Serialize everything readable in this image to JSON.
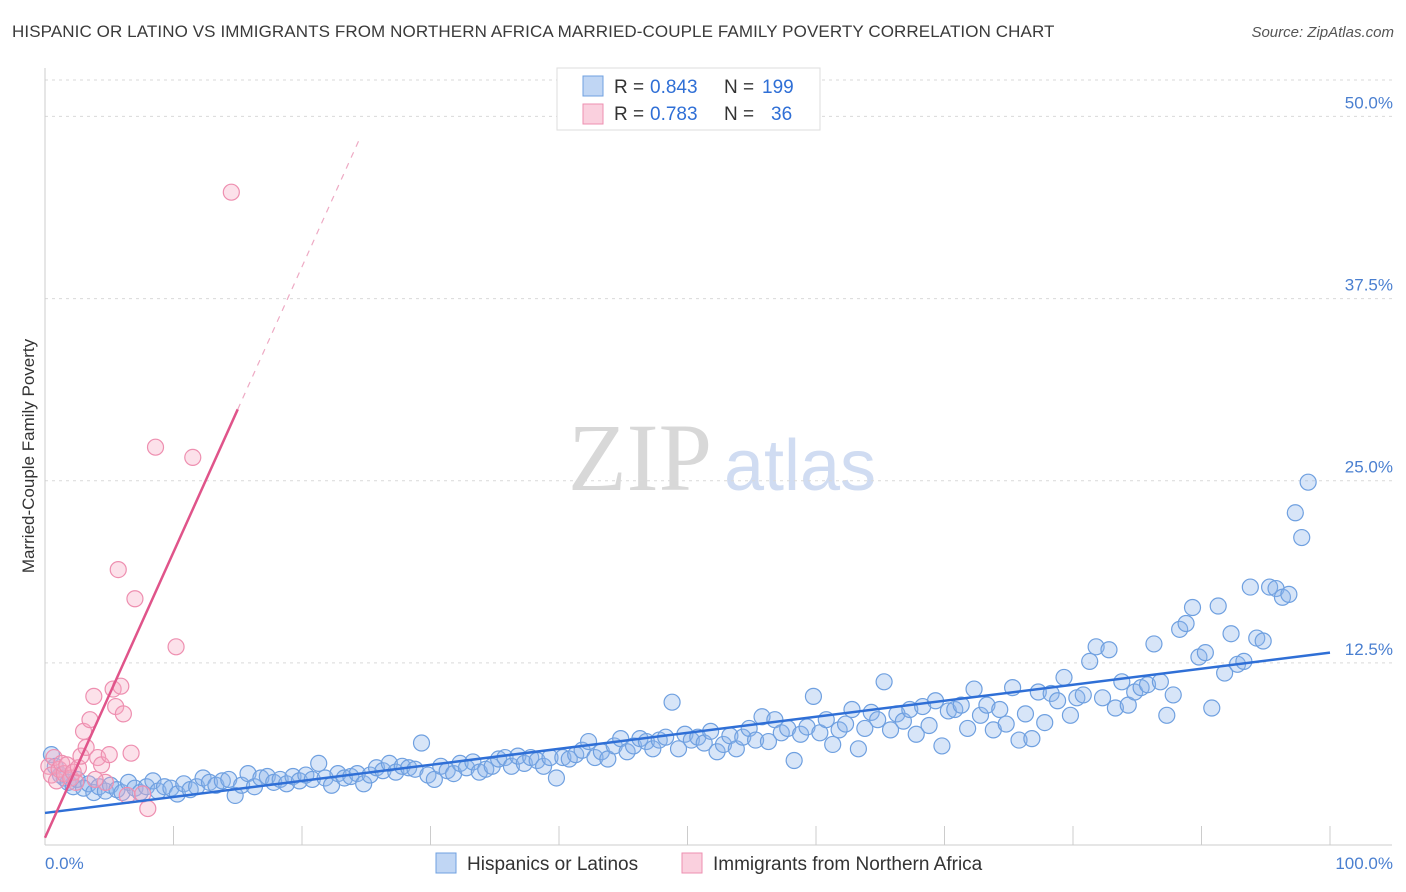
{
  "title": "HISPANIC OR LATINO VS IMMIGRANTS FROM NORTHERN AFRICA MARRIED-COUPLE FAMILY POVERTY CORRELATION CHART",
  "source": "Source: ZipAtlas.com",
  "watermark": {
    "zip": "ZIP",
    "atlas": "atlas"
  },
  "colors": {
    "blue": "#6fa0e0",
    "blue_fill": "rgba(140,180,235,0.35)",
    "blue_line": "#2f6fd6",
    "pink": "#ee8fb0",
    "pink_fill": "rgba(245,170,195,0.35)",
    "pink_line": "#e0548a",
    "grid": "#d9d9d9",
    "axis_text": "#4a7fd0"
  },
  "legend": {
    "rows": [
      {
        "r_label": "R =",
        "r_value": "0.843",
        "n_label": "N =",
        "n_value": "199"
      },
      {
        "r_label": "R =",
        "r_value": "0.783",
        "n_label": "N =",
        "n_value": "36"
      }
    ]
  },
  "chart_data": {
    "type": "scatter",
    "title": "HISPANIC OR LATINO VS IMMIGRANTS FROM NORTHERN AFRICA MARRIED-COUPLE FAMILY POVERTY CORRELATION CHART",
    "xlabel": "",
    "ylabel": "Married-Couple Family Poverty",
    "xlim": [
      0,
      100
    ],
    "ylim": [
      0,
      52.5
    ],
    "x_tick_labels": [
      "0.0%",
      "100.0%"
    ],
    "y_ticks": [
      12.5,
      25.0,
      37.5,
      50.0
    ],
    "y_tick_labels": [
      "12.5%",
      "25.0%",
      "37.5%",
      "50.0%"
    ],
    "legend_position": "top-center",
    "series": [
      {
        "name": "Hispanics or Latinos",
        "R": 0.843,
        "N": 199,
        "trend": {
          "x0": 0,
          "y0": 2.2,
          "x1": 100,
          "y1": 13.2
        },
        "points": [
          [
            0.5,
            6.2
          ],
          [
            0.8,
            5.4
          ],
          [
            1.2,
            4.8
          ],
          [
            1.5,
            4.6
          ],
          [
            1.8,
            4.3
          ],
          [
            2.2,
            4.0
          ],
          [
            2.5,
            4.5
          ],
          [
            3.0,
            3.9
          ],
          [
            3.4,
            4.2
          ],
          [
            3.8,
            3.6
          ],
          [
            4.2,
            4.0
          ],
          [
            4.7,
            3.7
          ],
          [
            5.1,
            4.1
          ],
          [
            5.6,
            3.8
          ],
          [
            6.0,
            3.6
          ],
          [
            6.5,
            4.3
          ],
          [
            7.0,
            3.9
          ],
          [
            7.4,
            3.6
          ],
          [
            7.9,
            4.0
          ],
          [
            8.4,
            4.4
          ],
          [
            8.8,
            3.7
          ],
          [
            9.3,
            4.0
          ],
          [
            9.8,
            3.9
          ],
          [
            10.3,
            3.5
          ],
          [
            10.8,
            4.2
          ],
          [
            11.3,
            3.8
          ],
          [
            11.8,
            4.0
          ],
          [
            12.3,
            4.6
          ],
          [
            12.8,
            4.3
          ],
          [
            13.3,
            4.1
          ],
          [
            13.8,
            4.4
          ],
          [
            14.3,
            4.5
          ],
          [
            14.8,
            3.4
          ],
          [
            15.3,
            4.1
          ],
          [
            15.8,
            4.9
          ],
          [
            16.3,
            4.0
          ],
          [
            16.8,
            4.6
          ],
          [
            17.3,
            4.7
          ],
          [
            17.8,
            4.3
          ],
          [
            18.3,
            4.5
          ],
          [
            18.8,
            4.2
          ],
          [
            19.3,
            4.7
          ],
          [
            19.8,
            4.4
          ],
          [
            20.3,
            4.8
          ],
          [
            20.8,
            4.5
          ],
          [
            21.3,
            5.6
          ],
          [
            21.8,
            4.6
          ],
          [
            22.3,
            4.1
          ],
          [
            22.8,
            4.9
          ],
          [
            23.3,
            4.6
          ],
          [
            23.8,
            4.7
          ],
          [
            24.3,
            4.9
          ],
          [
            24.8,
            4.2
          ],
          [
            25.3,
            4.8
          ],
          [
            25.8,
            5.3
          ],
          [
            26.3,
            5.1
          ],
          [
            26.8,
            5.6
          ],
          [
            27.3,
            5.0
          ],
          [
            27.8,
            5.4
          ],
          [
            28.3,
            5.3
          ],
          [
            28.8,
            5.2
          ],
          [
            29.3,
            7.0
          ],
          [
            29.8,
            4.8
          ],
          [
            30.3,
            4.5
          ],
          [
            30.8,
            5.4
          ],
          [
            31.3,
            5.1
          ],
          [
            31.8,
            4.9
          ],
          [
            32.3,
            5.6
          ],
          [
            32.8,
            5.3
          ],
          [
            33.3,
            5.7
          ],
          [
            33.8,
            5.0
          ],
          [
            34.3,
            5.2
          ],
          [
            34.8,
            5.4
          ],
          [
            35.3,
            5.9
          ],
          [
            35.8,
            6.0
          ],
          [
            36.3,
            5.4
          ],
          [
            36.8,
            6.1
          ],
          [
            37.3,
            5.6
          ],
          [
            37.8,
            6.0
          ],
          [
            38.3,
            5.8
          ],
          [
            38.8,
            5.4
          ],
          [
            39.3,
            6.0
          ],
          [
            39.8,
            4.6
          ],
          [
            40.3,
            6.0
          ],
          [
            40.8,
            5.9
          ],
          [
            41.3,
            6.2
          ],
          [
            41.8,
            6.5
          ],
          [
            42.3,
            7.1
          ],
          [
            42.8,
            6.0
          ],
          [
            43.3,
            6.4
          ],
          [
            43.8,
            5.9
          ],
          [
            44.3,
            6.8
          ],
          [
            44.8,
            7.3
          ],
          [
            45.3,
            6.4
          ],
          [
            45.8,
            6.8
          ],
          [
            46.3,
            7.3
          ],
          [
            46.8,
            7.1
          ],
          [
            47.3,
            6.6
          ],
          [
            47.8,
            7.2
          ],
          [
            48.3,
            7.4
          ],
          [
            48.8,
            9.8
          ],
          [
            49.3,
            6.6
          ],
          [
            49.8,
            7.6
          ],
          [
            50.3,
            7.2
          ],
          [
            50.8,
            7.4
          ],
          [
            51.3,
            7.0
          ],
          [
            51.8,
            7.8
          ],
          [
            52.3,
            6.4
          ],
          [
            52.8,
            6.9
          ],
          [
            53.3,
            7.5
          ],
          [
            53.8,
            6.6
          ],
          [
            54.3,
            7.4
          ],
          [
            54.8,
            8.0
          ],
          [
            55.3,
            7.2
          ],
          [
            55.8,
            8.8
          ],
          [
            56.3,
            7.1
          ],
          [
            56.8,
            8.6
          ],
          [
            57.3,
            7.7
          ],
          [
            57.8,
            8.0
          ],
          [
            58.3,
            5.8
          ],
          [
            58.8,
            7.6
          ],
          [
            59.3,
            8.1
          ],
          [
            59.8,
            10.2
          ],
          [
            60.3,
            7.7
          ],
          [
            60.8,
            8.6
          ],
          [
            61.3,
            6.9
          ],
          [
            61.8,
            7.9
          ],
          [
            62.3,
            8.3
          ],
          [
            62.8,
            9.3
          ],
          [
            63.3,
            6.6
          ],
          [
            63.8,
            8.0
          ],
          [
            64.3,
            9.1
          ],
          [
            64.8,
            8.6
          ],
          [
            65.3,
            11.2
          ],
          [
            65.8,
            7.9
          ],
          [
            66.3,
            9.0
          ],
          [
            66.8,
            8.5
          ],
          [
            67.3,
            9.3
          ],
          [
            67.8,
            7.6
          ],
          [
            68.3,
            9.5
          ],
          [
            68.8,
            8.2
          ],
          [
            69.3,
            9.9
          ],
          [
            69.8,
            6.8
          ],
          [
            70.3,
            9.2
          ],
          [
            70.8,
            9.3
          ],
          [
            71.3,
            9.6
          ],
          [
            71.8,
            8.0
          ],
          [
            72.3,
            10.7
          ],
          [
            72.8,
            8.9
          ],
          [
            73.3,
            9.6
          ],
          [
            73.8,
            7.9
          ],
          [
            74.3,
            9.3
          ],
          [
            74.8,
            8.3
          ],
          [
            75.3,
            10.8
          ],
          [
            75.8,
            7.2
          ],
          [
            76.3,
            9.0
          ],
          [
            76.8,
            7.3
          ],
          [
            77.3,
            10.5
          ],
          [
            77.8,
            8.4
          ],
          [
            78.3,
            10.4
          ],
          [
            78.8,
            9.9
          ],
          [
            79.3,
            11.5
          ],
          [
            79.8,
            8.9
          ],
          [
            80.3,
            10.1
          ],
          [
            80.8,
            10.3
          ],
          [
            81.3,
            12.6
          ],
          [
            81.8,
            13.6
          ],
          [
            82.3,
            10.1
          ],
          [
            82.8,
            13.4
          ],
          [
            83.3,
            9.4
          ],
          [
            83.8,
            11.2
          ],
          [
            84.3,
            9.6
          ],
          [
            84.8,
            10.5
          ],
          [
            85.3,
            10.8
          ],
          [
            85.8,
            11.0
          ],
          [
            86.3,
            13.8
          ],
          [
            86.8,
            11.2
          ],
          [
            87.3,
            8.9
          ],
          [
            87.8,
            10.3
          ],
          [
            88.3,
            14.8
          ],
          [
            88.8,
            15.2
          ],
          [
            89.3,
            16.3
          ],
          [
            89.8,
            12.9
          ],
          [
            90.3,
            13.2
          ],
          [
            90.8,
            9.4
          ],
          [
            91.3,
            16.4
          ],
          [
            91.8,
            11.8
          ],
          [
            92.3,
            14.5
          ],
          [
            92.8,
            12.4
          ],
          [
            93.3,
            12.6
          ],
          [
            93.8,
            17.7
          ],
          [
            94.3,
            14.2
          ],
          [
            94.8,
            14.0
          ],
          [
            95.3,
            17.7
          ],
          [
            95.8,
            17.6
          ],
          [
            96.3,
            17.0
          ],
          [
            96.8,
            17.2
          ],
          [
            97.3,
            22.8
          ],
          [
            97.8,
            21.1
          ],
          [
            98.3,
            24.9
          ]
        ]
      },
      {
        "name": "Immigrants from Northern Africa",
        "R": 0.783,
        "N": 36,
        "trend": {
          "x0": 0,
          "y0": 0.5,
          "x1": 15.0,
          "y1": 29.9
        },
        "trend_dashed_to": {
          "x": 24.5,
          "y": 48.5
        },
        "points": [
          [
            0.3,
            5.4
          ],
          [
            0.5,
            4.8
          ],
          [
            0.7,
            6.0
          ],
          [
            0.9,
            4.4
          ],
          [
            1.1,
            5.2
          ],
          [
            1.3,
            5.6
          ],
          [
            1.5,
            4.9
          ],
          [
            1.7,
            5.5
          ],
          [
            2.0,
            4.6
          ],
          [
            2.2,
            5.0
          ],
          [
            2.4,
            4.3
          ],
          [
            2.6,
            5.3
          ],
          [
            2.8,
            6.1
          ],
          [
            3.0,
            7.8
          ],
          [
            3.2,
            6.7
          ],
          [
            3.5,
            8.6
          ],
          [
            3.8,
            10.2
          ],
          [
            4.1,
            6.0
          ],
          [
            4.4,
            5.5
          ],
          [
            4.7,
            4.3
          ],
          [
            5.0,
            6.2
          ],
          [
            5.3,
            10.7
          ],
          [
            5.5,
            9.5
          ],
          [
            5.7,
            18.9
          ],
          [
            5.9,
            10.9
          ],
          [
            6.1,
            9.0
          ],
          [
            6.4,
            3.4
          ],
          [
            6.7,
            6.3
          ],
          [
            7.0,
            16.9
          ],
          [
            7.6,
            3.5
          ],
          [
            8.0,
            2.5
          ],
          [
            8.6,
            27.3
          ],
          [
            10.2,
            13.6
          ],
          [
            11.5,
            26.6
          ],
          [
            14.5,
            44.8
          ],
          [
            3.9,
            4.5
          ]
        ]
      }
    ]
  },
  "bottom_legend": [
    "Hispanics or Latinos",
    "Immigrants from Northern Africa"
  ]
}
